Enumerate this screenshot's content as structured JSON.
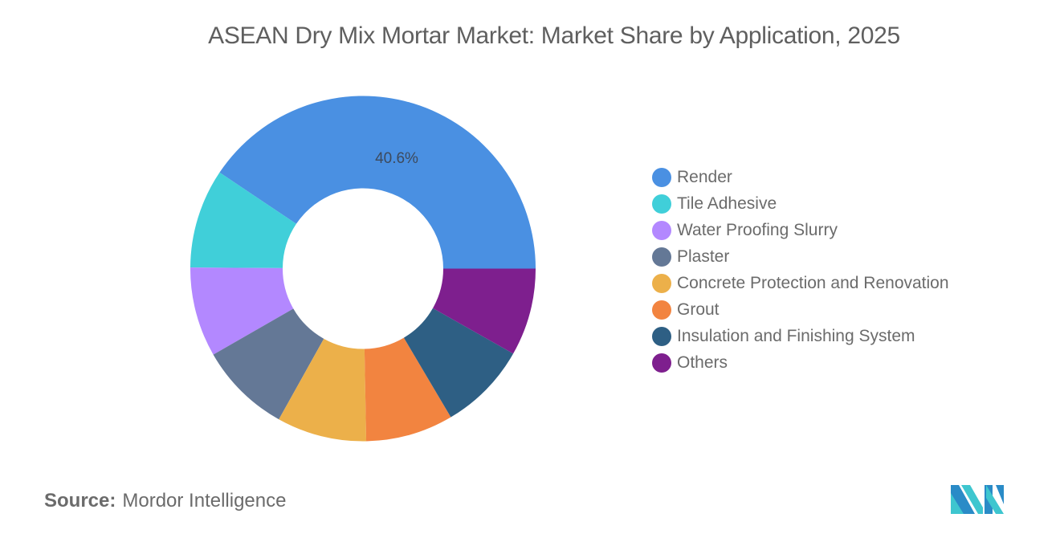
{
  "title": "ASEAN Dry Mix Mortar Market: Market Share by Application, 2025",
  "source": {
    "label": "Source:",
    "value": "Mordor Intelligence"
  },
  "logo": {
    "icon": "mordor-intelligence-logo-icon"
  },
  "chart_data": {
    "type": "pie",
    "subtype": "donut",
    "title": "ASEAN Dry Mix Mortar Market: Market Share by Application, 2025",
    "start_angle": "3 o'clock, counterclockwise",
    "legend_position": "right",
    "data_labels": [
      {
        "category": "Render",
        "text": "40.6%"
      }
    ],
    "categories": [
      "Render",
      "Tile Adhesive",
      "Water Proofing Slurry",
      "Plaster",
      "Concrete Protection and Renovation",
      "Grout",
      "Insulation and Finishing System",
      "Others"
    ],
    "values": [
      40.6,
      9.3,
      8.4,
      8.6,
      8.4,
      8.2,
      8.3,
      8.2
    ],
    "colors": [
      "#4A90E2",
      "#40CFD9",
      "#B388FF",
      "#647896",
      "#ECB04A",
      "#F28440",
      "#2E5F84",
      "#7E1F8E"
    ],
    "units": "%"
  },
  "legend": [
    {
      "label": "Render",
      "color": "#4A90E2"
    },
    {
      "label": "Tile Adhesive",
      "color": "#40CFD9"
    },
    {
      "label": "Water Proofing Slurry",
      "color": "#B388FF"
    },
    {
      "label": "Plaster",
      "color": "#647896"
    },
    {
      "label": "Concrete Protection and Renovation",
      "color": "#ECB04A"
    },
    {
      "label": "Grout",
      "color": "#F28440"
    },
    {
      "label": "Insulation and Finishing System",
      "color": "#2E5F84"
    },
    {
      "label": "Others",
      "color": "#7E1F8E"
    }
  ]
}
